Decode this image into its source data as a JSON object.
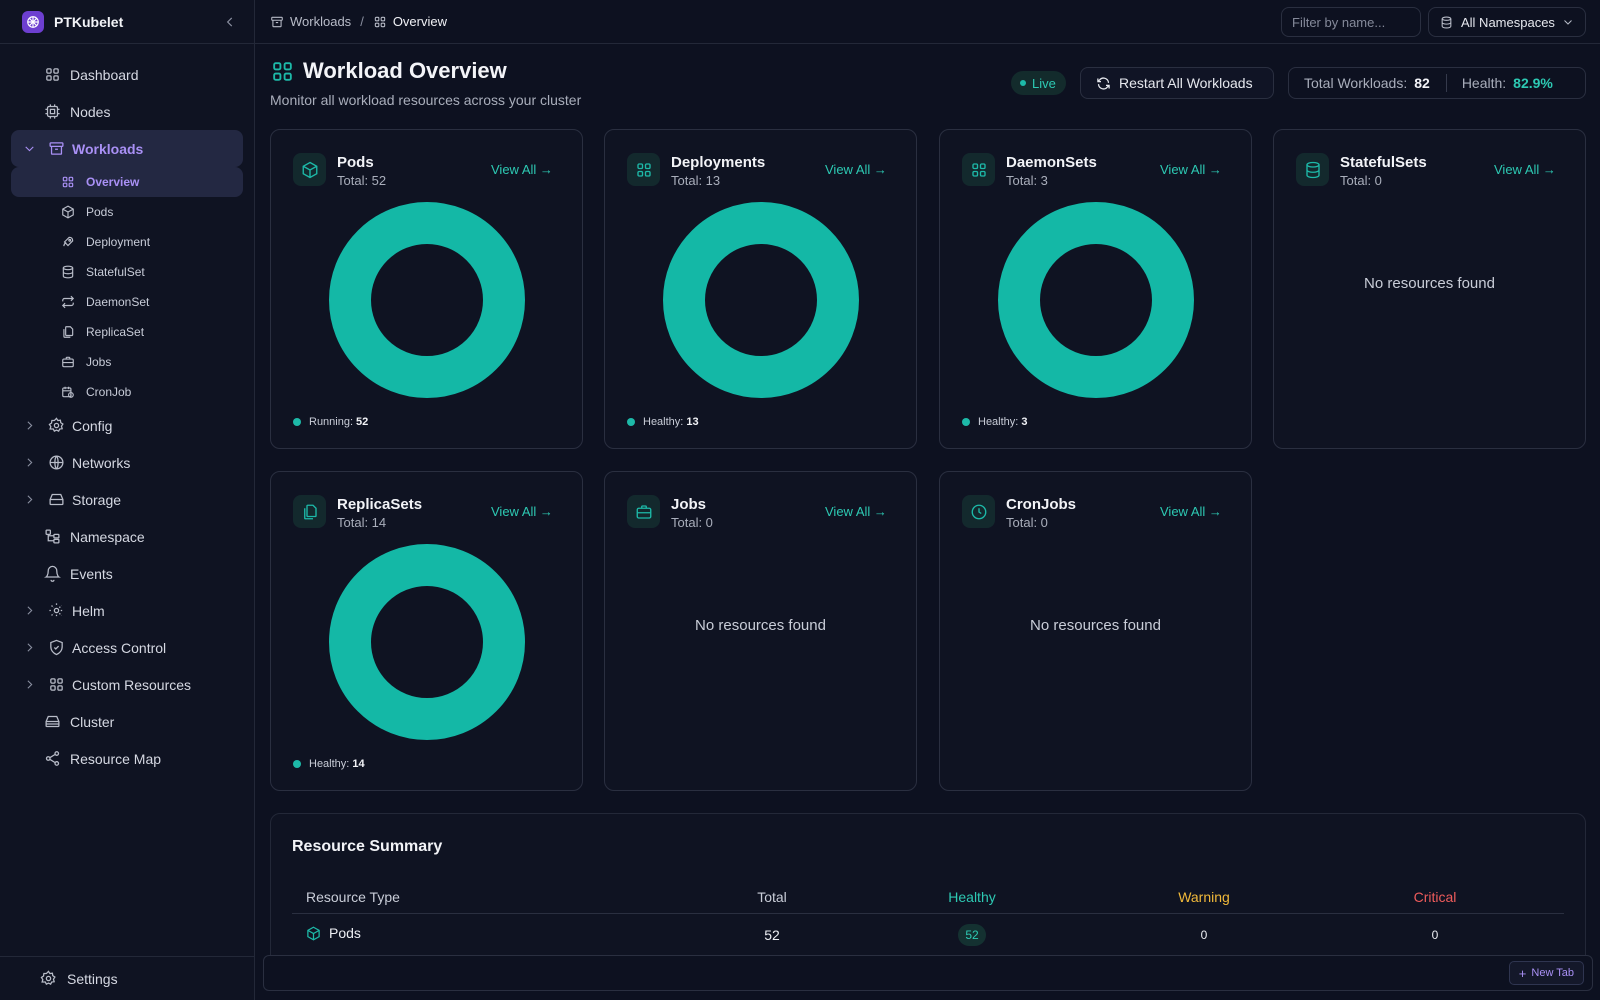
{
  "app": {
    "name": "PTKubelet"
  },
  "sidebar": {
    "items": [
      {
        "label": "Dashboard",
        "icon": "dashboard-icon"
      },
      {
        "label": "Nodes",
        "icon": "nodes-icon"
      },
      {
        "label": "Workloads",
        "icon": "workloads-icon",
        "expanded": true,
        "active": true
      },
      {
        "label": "Config",
        "icon": "config-icon"
      },
      {
        "label": "Networks",
        "icon": "networks-icon"
      },
      {
        "label": "Storage",
        "icon": "storage-icon"
      },
      {
        "label": "Namespace",
        "icon": "namespace-icon"
      },
      {
        "label": "Events",
        "icon": "events-icon"
      },
      {
        "label": "Helm",
        "icon": "helm-icon"
      },
      {
        "label": "Access Control",
        "icon": "access-control-icon"
      },
      {
        "label": "Custom Resources",
        "icon": "custom-resources-icon"
      },
      {
        "label": "Cluster",
        "icon": "cluster-icon"
      },
      {
        "label": "Resource Map",
        "icon": "resource-map-icon"
      }
    ],
    "workload_sub": [
      {
        "label": "Overview",
        "icon": "overview-icon",
        "active": true
      },
      {
        "label": "Pods",
        "icon": "pods-icon"
      },
      {
        "label": "Deployment",
        "icon": "deployment-icon"
      },
      {
        "label": "StatefulSet",
        "icon": "statefulset-icon"
      },
      {
        "label": "DaemonSet",
        "icon": "daemonset-icon"
      },
      {
        "label": "ReplicaSet",
        "icon": "replicaset-icon"
      },
      {
        "label": "Jobs",
        "icon": "jobs-icon"
      },
      {
        "label": "CronJob",
        "icon": "cronjob-icon"
      }
    ],
    "settings_label": "Settings"
  },
  "topbar": {
    "breadcrumb": [
      "Workloads",
      "Overview"
    ],
    "breadcrumb_sep": "/",
    "filter_placeholder": "Filter by name...",
    "namespace_selected": "All Namespaces"
  },
  "header": {
    "title": "Workload Overview",
    "subtitle": "Monitor all workload resources across your cluster",
    "live_label": "Live",
    "restart_label": "Restart All Workloads",
    "total_label": "Total Workloads:",
    "total_value": "82",
    "health_label": "Health:",
    "health_value": "82.9%"
  },
  "colors": {
    "accent": "#1db9a8",
    "purple": "#a990f5",
    "warning": "#f1b93a",
    "critical": "#ee5b5b",
    "background": "#0d1120"
  },
  "cards": [
    {
      "title": "Pods",
      "total": "Total: 52",
      "view_all": "View All →",
      "legend_label": "Running:",
      "legend_value": "52",
      "empty": ""
    },
    {
      "title": "Deployments",
      "total": "Total: 13",
      "view_all": "View All →",
      "legend_label": "Healthy:",
      "legend_value": "13",
      "empty": ""
    },
    {
      "title": "DaemonSets",
      "total": "Total: 3",
      "view_all": "View All →",
      "legend_label": "Healthy:",
      "legend_value": "3",
      "empty": ""
    },
    {
      "title": "StatefulSets",
      "total": "Total: 0",
      "view_all": "View All →",
      "legend_label": "",
      "legend_value": "",
      "empty": "No resources found"
    },
    {
      "title": "ReplicaSets",
      "total": "Total: 14",
      "view_all": "View All →",
      "legend_label": "Healthy:",
      "legend_value": "14",
      "empty": ""
    },
    {
      "title": "Jobs",
      "total": "Total: 0",
      "view_all": "View All →",
      "legend_label": "",
      "legend_value": "",
      "empty": "No resources found"
    },
    {
      "title": "CronJobs",
      "total": "Total: 0",
      "view_all": "View All →",
      "legend_label": "",
      "legend_value": "",
      "empty": "No resources found"
    }
  ],
  "summary": {
    "title": "Resource Summary",
    "headers": [
      "Resource Type",
      "Total",
      "Healthy",
      "Warning",
      "Critical"
    ],
    "rows": [
      {
        "type": "Pods",
        "total": "52",
        "healthy": "52",
        "warning": "0",
        "critical": "0"
      }
    ]
  },
  "tabbar": {
    "new_tab_label": "New Tab"
  }
}
